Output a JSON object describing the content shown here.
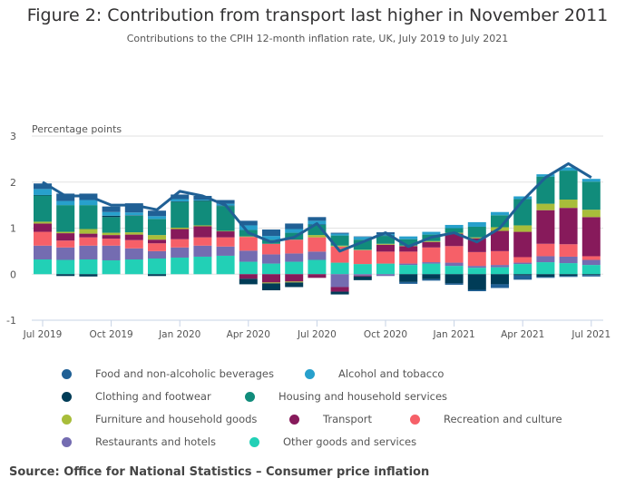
{
  "title": "Figure 2: Contribution from transport last higher in November 2011",
  "subtitle": "Contributions to the CPIH 12-month inflation rate, UK, July 2019 to July 2021",
  "source": "Source: Office for National Statistics – Consumer price inflation",
  "chart_data": {
    "type": "bar",
    "stacked": true,
    "title": "Figure 2: Contribution from transport last higher in November 2011",
    "subtitle": "Contributions to the CPIH 12-month inflation rate, UK, July 2019 to July 2021",
    "ylabel": "Percentage points",
    "xlabel": "",
    "ylim": [
      -1,
      3
    ],
    "yticks": [
      -1,
      0,
      1,
      2,
      3
    ],
    "grid": true,
    "legend_position": "bottom",
    "categories": [
      "Jul 2019",
      "Aug 2019",
      "Sep 2019",
      "Oct 2019",
      "Nov 2019",
      "Dec 2019",
      "Jan 2020",
      "Feb 2020",
      "Mar 2020",
      "Apr 2020",
      "May 2020",
      "Jun 2020",
      "Jul 2020",
      "Aug 2020",
      "Sep 2020",
      "Oct 2020",
      "Nov 2020",
      "Dec 2020",
      "Jan 2021",
      "Feb 2021",
      "Mar 2021",
      "Apr 2021",
      "May 2021",
      "Jun 2021",
      "Jul 2021"
    ],
    "xtick_labels": [
      "Jul 2019",
      "Oct 2019",
      "Jan 2020",
      "Apr 2020",
      "Jul 2020",
      "Oct 2020",
      "Jan 2021",
      "Apr 2021",
      "Jul 2021"
    ],
    "series": [
      {
        "name": "Other goods and services",
        "color": "#22d0b6",
        "values": [
          0.32,
          0.31,
          0.32,
          0.3,
          0.32,
          0.34,
          0.36,
          0.38,
          0.4,
          0.27,
          0.23,
          0.27,
          0.31,
          0.25,
          0.22,
          0.23,
          0.2,
          0.23,
          0.18,
          0.14,
          0.15,
          0.22,
          0.26,
          0.24,
          0.2
        ]
      },
      {
        "name": "Restaurants and hotels",
        "color": "#746cb1",
        "values": [
          0.3,
          0.27,
          0.3,
          0.32,
          0.24,
          0.16,
          0.22,
          0.24,
          0.2,
          0.24,
          0.2,
          0.18,
          0.18,
          -0.28,
          -0.03,
          -0.04,
          0.03,
          0.03,
          0.07,
          0.04,
          0.05,
          0.03,
          0.13,
          0.14,
          0.11
        ]
      },
      {
        "name": "Recreation and culture",
        "color": "#f66068",
        "values": [
          0.3,
          0.15,
          0.18,
          0.15,
          0.18,
          0.17,
          0.18,
          0.18,
          0.2,
          0.3,
          0.23,
          0.3,
          0.31,
          0.35,
          0.3,
          0.26,
          0.26,
          0.32,
          0.36,
          0.3,
          0.3,
          0.12,
          0.27,
          0.27,
          0.08
        ]
      },
      {
        "name": "Transport",
        "color": "#871a5b",
        "values": [
          0.18,
          0.16,
          0.08,
          0.08,
          0.12,
          0.08,
          0.22,
          0.24,
          0.13,
          -0.1,
          -0.18,
          -0.16,
          -0.08,
          -0.1,
          -0.02,
          0.15,
          0.12,
          0.12,
          0.27,
          0.3,
          0.44,
          0.55,
          0.73,
          0.79,
          0.85
        ]
      },
      {
        "name": "Furniture and household goods",
        "color": "#a8bd3a",
        "values": [
          0.04,
          0.03,
          0.1,
          0.05,
          0.05,
          0.1,
          0.03,
          0.02,
          0.01,
          0.01,
          -0.02,
          -0.02,
          0.05,
          0.02,
          0.01,
          0.02,
          0.01,
          0.02,
          0.02,
          0.02,
          0.08,
          0.14,
          0.14,
          0.18,
          0.16
        ]
      },
      {
        "name": "Housing and household services",
        "color": "#118c7b",
        "values": [
          0.57,
          0.58,
          0.52,
          0.34,
          0.36,
          0.35,
          0.56,
          0.53,
          0.54,
          0.14,
          0.09,
          0.15,
          0.22,
          0.22,
          0.22,
          0.17,
          0.14,
          0.14,
          0.1,
          0.23,
          0.26,
          0.57,
          0.59,
          0.63,
          0.61
        ]
      },
      {
        "name": "Clothing and footwear",
        "color": "#003c57",
        "values": [
          0.01,
          -0.04,
          -0.05,
          0.03,
          0.01,
          -0.04,
          0.01,
          0.01,
          0.01,
          -0.12,
          -0.15,
          -0.1,
          0.01,
          -0.06,
          -0.08,
          0.01,
          -0.17,
          -0.11,
          -0.2,
          -0.34,
          -0.22,
          -0.03,
          -0.06,
          -0.04,
          -0.02
        ]
      },
      {
        "name": "Alcohol and tobacco",
        "color": "#27a0cc",
        "values": [
          0.13,
          0.09,
          0.11,
          0.08,
          0.06,
          0.06,
          0.05,
          0.02,
          0.04,
          0.1,
          0.08,
          0.08,
          0.08,
          0.04,
          0.06,
          0.03,
          0.06,
          0.06,
          0.07,
          0.1,
          0.07,
          0.06,
          0.05,
          0.07,
          0.06
        ]
      },
      {
        "name": "Food and non-alcoholic beverages",
        "color": "#206095",
        "values": [
          0.12,
          0.16,
          0.14,
          0.12,
          0.2,
          0.12,
          0.1,
          0.08,
          0.08,
          0.1,
          0.14,
          0.12,
          0.08,
          0.02,
          0.01,
          0.04,
          -0.04,
          -0.03,
          -0.03,
          -0.03,
          -0.08,
          -0.09,
          -0.02,
          -0.02,
          -0.03
        ]
      }
    ],
    "line_series": {
      "name": "CPIH 12-month rate",
      "color": "#206095",
      "values": [
        2.0,
        1.7,
        1.7,
        1.5,
        1.5,
        1.4,
        1.8,
        1.7,
        1.5,
        0.9,
        0.7,
        0.8,
        1.1,
        0.5,
        0.7,
        0.9,
        0.6,
        0.8,
        0.9,
        0.7,
        1.0,
        1.6,
        2.1,
        2.4,
        2.1
      ]
    }
  },
  "legend": [
    [
      {
        "label": "Food and non-alcoholic beverages",
        "color": "#206095"
      },
      {
        "label": "Alcohol and tobacco",
        "color": "#27a0cc"
      }
    ],
    [
      {
        "label": "Clothing and footwear",
        "color": "#003c57"
      },
      {
        "label": "Housing and household services",
        "color": "#118c7b"
      }
    ],
    [
      {
        "label": "Furniture and household goods",
        "color": "#a8bd3a"
      },
      {
        "label": "Transport",
        "color": "#871a5b"
      },
      {
        "label": "Recreation and culture",
        "color": "#f66068"
      }
    ],
    [
      {
        "label": "Restaurants and hotels",
        "color": "#746cb1"
      },
      {
        "label": "Other goods and services",
        "color": "#22d0b6"
      }
    ]
  ]
}
